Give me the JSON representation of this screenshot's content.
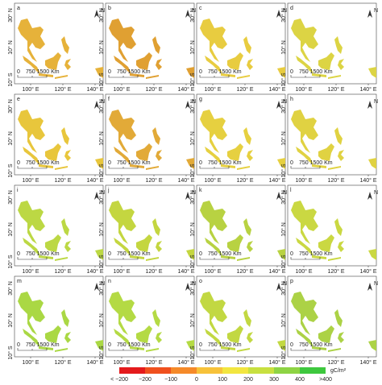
{
  "panels": [
    {
      "label": "a",
      "fill": "#e6b23a"
    },
    {
      "label": "b",
      "fill": "#e0a032"
    },
    {
      "label": "c",
      "fill": "#e8cc40"
    },
    {
      "label": "d",
      "fill": "#dcd444"
    },
    {
      "label": "e",
      "fill": "#e8c63c"
    },
    {
      "label": "f",
      "fill": "#e2aa38"
    },
    {
      "label": "g",
      "fill": "#e6d040"
    },
    {
      "label": "h",
      "fill": "#e0d242"
    },
    {
      "label": "i",
      "fill": "#bcd844"
    },
    {
      "label": "j",
      "fill": "#c4d640"
    },
    {
      "label": "k",
      "fill": "#b8d242"
    },
    {
      "label": "l",
      "fill": "#cad842"
    },
    {
      "label": "m",
      "fill": "#aad844"
    },
    {
      "label": "n",
      "fill": "#b4da44"
    },
    {
      "label": "o",
      "fill": "#c2d842"
    },
    {
      "label": "p",
      "fill": "#acd246"
    }
  ],
  "axes": {
    "x_labels": [
      "100° E",
      "120° E",
      "140° E"
    ],
    "y_labels": [
      "30° N",
      "10° N",
      "10° S"
    ]
  },
  "scale_bar": [
    "0",
    "750 1500 Km"
  ],
  "north": "N",
  "legend": {
    "colors": [
      "#e41a1c",
      "#f0501e",
      "#f58a2a",
      "#f7c23a",
      "#f2e640",
      "#c8e040",
      "#8ed444",
      "#3ec83e"
    ],
    "labels": [
      "< −200",
      "−200",
      "−100",
      "0",
      "100",
      "200",
      "300",
      "400",
      ">400"
    ],
    "unit": "gC/m²"
  }
}
